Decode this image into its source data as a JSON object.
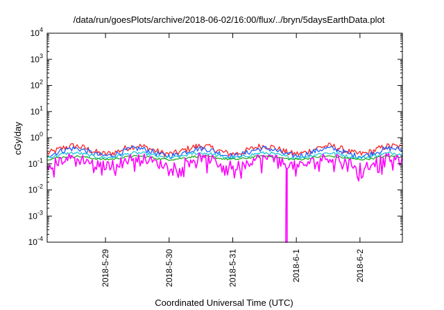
{
  "chart_data": {
    "type": "line",
    "title": "/data/run/goesPlots/archive/2018-06-02/16:00/flux/../bryn/5daysEarthData.plot",
    "xlabel": "Coordinated Universal Time (UTC)",
    "ylabel": "cGy/day",
    "yscale": "log",
    "ylim": [
      0.0001,
      10000
    ],
    "xlim": [
      "2018-05-28 02:00",
      "2018-06-02 16:00"
    ],
    "x_ticks": [
      "2018-5-29",
      "2018-5-30",
      "2018-5-31",
      "2018-6-1",
      "2018-6-2"
    ],
    "y_tick_labels": [
      {
        "base": "10",
        "exp": "4"
      },
      {
        "base": "10",
        "exp": "3"
      },
      {
        "base": "10",
        "exp": "2"
      },
      {
        "base": "10",
        "exp": "1"
      },
      {
        "base": "10",
        "exp": "0"
      },
      {
        "base": "10",
        "exp": "-1"
      },
      {
        "base": "10",
        "exp": "-2"
      },
      {
        "base": "10",
        "exp": "-3"
      },
      {
        "base": "10",
        "exp": "-4"
      }
    ],
    "grid": false,
    "legend": "none",
    "series": [
      {
        "color": "#ff2020",
        "level": 0.34,
        "amplitude": 0.3,
        "noise": 0.25
      },
      {
        "color": "#1f5fff",
        "level": 0.28,
        "amplitude": 0.28,
        "noise": 0.22
      },
      {
        "color": "#1ec8d8",
        "level": 0.21,
        "amplitude": 0.18,
        "noise": 0.12
      },
      {
        "color": "#22aa22",
        "level": 0.17,
        "amplitude": 0.12,
        "noise": 0.08
      },
      {
        "color": "#ff00ff",
        "level": 0.12,
        "amplitude": 0.3,
        "noise": 0.38
      }
    ],
    "dropout": {
      "series_color": "#ff00ff",
      "x": "2018-05-31 20:00",
      "y_min": 0.0001
    }
  }
}
